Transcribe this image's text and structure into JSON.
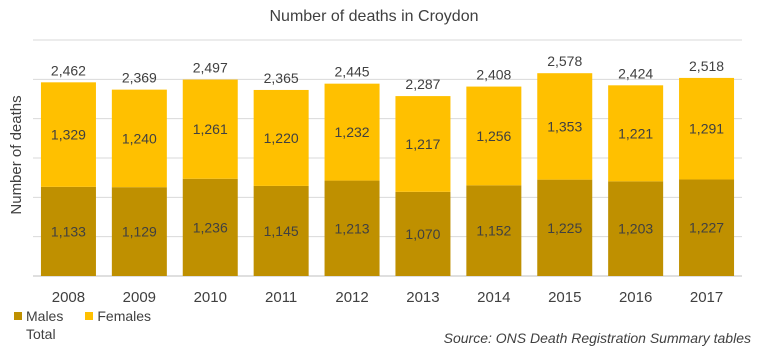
{
  "chart_data": {
    "type": "bar",
    "stacked": true,
    "title": "Number of deaths in Croydon",
    "xlabel": "",
    "ylabel": "Number of deaths",
    "categories": [
      "2008",
      "2009",
      "2010",
      "2011",
      "2012",
      "2013",
      "2014",
      "2015",
      "2016",
      "2017"
    ],
    "series": [
      {
        "name": "Males",
        "color": "#bf9000",
        "values": [
          1133,
          1129,
          1236,
          1145,
          1213,
          1070,
          1152,
          1225,
          1203,
          1227
        ]
      },
      {
        "name": "Females",
        "color": "#ffc000",
        "values": [
          1329,
          1240,
          1261,
          1220,
          1232,
          1217,
          1256,
          1353,
          1221,
          1291
        ]
      }
    ],
    "totals": {
      "name": "Total",
      "values": [
        2462,
        2369,
        2497,
        2365,
        2445,
        2287,
        2408,
        2578,
        2424,
        2518
      ]
    },
    "ylim": [
      0,
      3000
    ],
    "grid": true,
    "legend_placement": "bottom-left"
  },
  "legend": {
    "males": "Males",
    "females": "Females",
    "total": "Total"
  },
  "source": "Source: ONS Death Registration Summary tables"
}
